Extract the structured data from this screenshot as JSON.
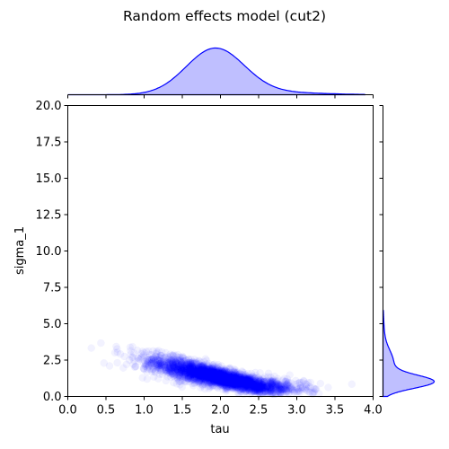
{
  "chart_data": {
    "type": "scatter",
    "title": "Random effects model (cut2)",
    "xlabel": "tau",
    "ylabel": "sigma_1",
    "xlim": [
      0.0,
      4.0
    ],
    "ylim": [
      0.0,
      20.0
    ],
    "x_ticks": [
      "0.0",
      "0.5",
      "1.0",
      "1.5",
      "2.0",
      "2.5",
      "3.0",
      "3.5",
      "4.0"
    ],
    "y_ticks": [
      "0.0",
      "2.5",
      "5.0",
      "7.5",
      "10.0",
      "12.5",
      "15.0",
      "17.5",
      "20.0"
    ],
    "point_color": "#0000ff",
    "point_alpha": 0.05,
    "grid": false,
    "marginals": {
      "type": "kde",
      "color": "#0000ff",
      "x_mode": 1.93,
      "y_mode": 1.0
    },
    "distribution_summary": {
      "x_center": 2.0,
      "x_spread": 0.45,
      "y_center": 1.3,
      "y_spread": 0.5,
      "n_points": 3000
    }
  }
}
